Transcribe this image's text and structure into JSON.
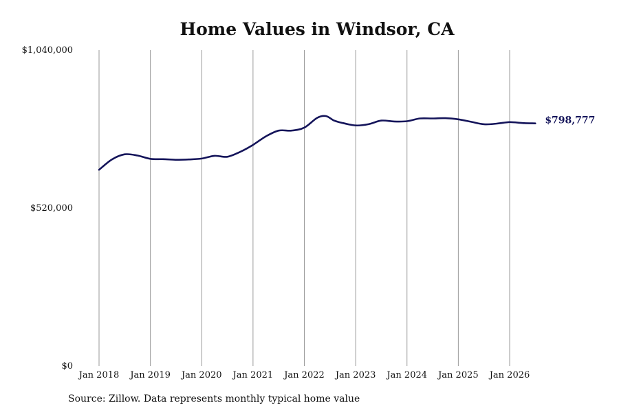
{
  "chart_data": {
    "type": "line",
    "title": "Home Values in Windsor, CA",
    "source": "Source: Zillow. Data represents monthly typical home value",
    "ylim": [
      0,
      1040000
    ],
    "y_ticks": [
      0,
      520000,
      1040000
    ],
    "y_tick_labels": [
      "$0",
      "$520,000",
      "$1,040,000"
    ],
    "x_ticks": [
      2018,
      2019,
      2020,
      2021,
      2022,
      2023,
      2024,
      2025,
      2026
    ],
    "x_tick_labels": [
      "Jan 2018",
      "Jan 2019",
      "Jan 2020",
      "Jan 2021",
      "Jan 2022",
      "Jan 2023",
      "Jan 2024",
      "Jan 2025",
      "Jan 2026"
    ],
    "grid": "vertical",
    "line_color": "#14145a",
    "end_label": "$798,777",
    "series": [
      {
        "x": [
          2018.0,
          2018.25,
          2018.5,
          2018.75,
          2019.0,
          2019.25,
          2019.5,
          2019.75,
          2020.0,
          2020.25,
          2020.5,
          2020.75,
          2021.0,
          2021.25,
          2021.5,
          2021.75,
          2022.0,
          2022.25,
          2022.42,
          2022.58,
          2022.75,
          2023.0,
          2023.25,
          2023.5,
          2023.75,
          2024.0,
          2024.25,
          2024.5,
          2024.75,
          2025.0,
          2025.25,
          2025.5,
          2025.75,
          2026.0,
          2026.25,
          2026.5
        ],
        "values": [
          646000,
          680000,
          697000,
          693000,
          682000,
          681000,
          679000,
          680000,
          683000,
          692000,
          689000,
          705000,
          728000,
          756000,
          775000,
          775000,
          785000,
          817000,
          823000,
          808000,
          800000,
          792000,
          796000,
          808000,
          805000,
          806000,
          815000,
          815000,
          816000,
          812000,
          804000,
          796000,
          798000,
          803000,
          800000,
          798777
        ]
      }
    ]
  }
}
